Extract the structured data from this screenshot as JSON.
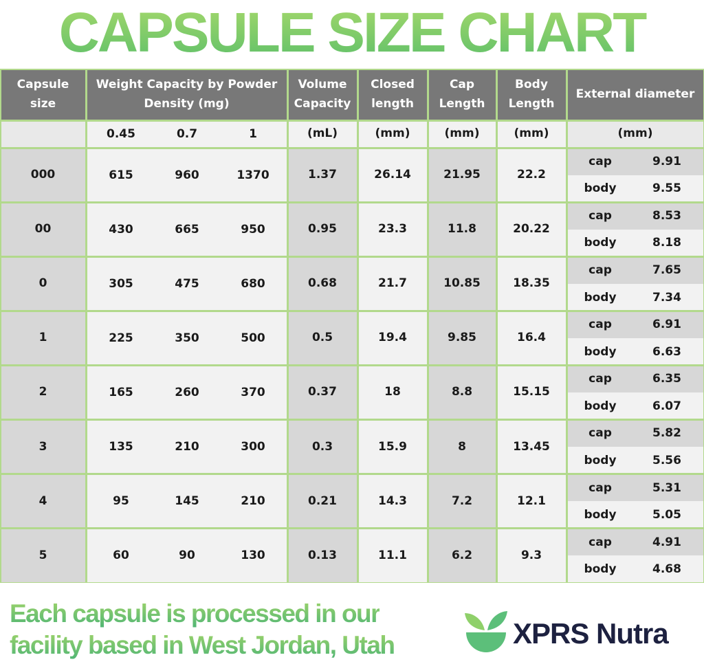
{
  "title": "CAPSULE SIZE CHART",
  "table": {
    "headers": [
      "Capsule size",
      "Weight Capacity by Powder Density (mg)",
      "Volume Capacity",
      "Closed length",
      "Cap Length",
      "Body Length",
      "External diameter"
    ],
    "units": [
      "0.45",
      "0.7",
      "1",
      "(mL)",
      "(mm)",
      "(mm)",
      "(mm)",
      "(mm)"
    ],
    "rows": [
      {
        "size": "000",
        "weights": [
          "615",
          "960",
          "1370"
        ],
        "volume": "1.37",
        "closed": "26.14",
        "cap": "21.95",
        "body": "22.2",
        "diameter": [
          {
            "part": "cap",
            "value": "9.91"
          },
          {
            "part": "body",
            "value": "9.55"
          }
        ]
      },
      {
        "size": "00",
        "weights": [
          "430",
          "665",
          "950"
        ],
        "volume": "0.95",
        "closed": "23.3",
        "cap": "11.8",
        "body": "20.22",
        "diameter": [
          {
            "part": "cap",
            "value": "8.53"
          },
          {
            "part": "body",
            "value": "8.18"
          }
        ]
      },
      {
        "size": "0",
        "weights": [
          "305",
          "475",
          "680"
        ],
        "volume": "0.68",
        "closed": "21.7",
        "cap": "10.85",
        "body": "18.35",
        "diameter": [
          {
            "part": "cap",
            "value": "7.65"
          },
          {
            "part": "body",
            "value": "7.34"
          }
        ]
      },
      {
        "size": "1",
        "weights": [
          "225",
          "350",
          "500"
        ],
        "volume": "0.5",
        "closed": "19.4",
        "cap": "9.85",
        "body": "16.4",
        "diameter": [
          {
            "part": "cap",
            "value": "6.91"
          },
          {
            "part": "body",
            "value": "6.63"
          }
        ]
      },
      {
        "size": "2",
        "weights": [
          "165",
          "260",
          "370"
        ],
        "volume": "0.37",
        "closed": "18",
        "cap": "8.8",
        "body": "15.15",
        "diameter": [
          {
            "part": "cap",
            "value": "6.35"
          },
          {
            "part": "body",
            "value": "6.07"
          }
        ]
      },
      {
        "size": "3",
        "weights": [
          "135",
          "210",
          "300"
        ],
        "volume": "0.3",
        "closed": "15.9",
        "cap": "8",
        "body": "13.45",
        "diameter": [
          {
            "part": "cap",
            "value": "5.82"
          },
          {
            "part": "body",
            "value": "5.56"
          }
        ]
      },
      {
        "size": "4",
        "weights": [
          "95",
          "145",
          "210"
        ],
        "volume": "0.21",
        "closed": "14.3",
        "cap": "7.2",
        "body": "12.1",
        "diameter": [
          {
            "part": "cap",
            "value": "5.31"
          },
          {
            "part": "body",
            "value": "5.05"
          }
        ]
      },
      {
        "size": "5",
        "weights": [
          "60",
          "90",
          "130"
        ],
        "volume": "0.13",
        "closed": "11.1",
        "cap": "6.2",
        "body": "9.3",
        "diameter": [
          {
            "part": "cap",
            "value": "4.91"
          },
          {
            "part": "body",
            "value": "4.68"
          }
        ]
      }
    ]
  },
  "footer": {
    "lines": [
      "Each capsule is processed in our",
      "facility based in West Jordan, Utah"
    ],
    "brand": "XPRS Nutra"
  }
}
